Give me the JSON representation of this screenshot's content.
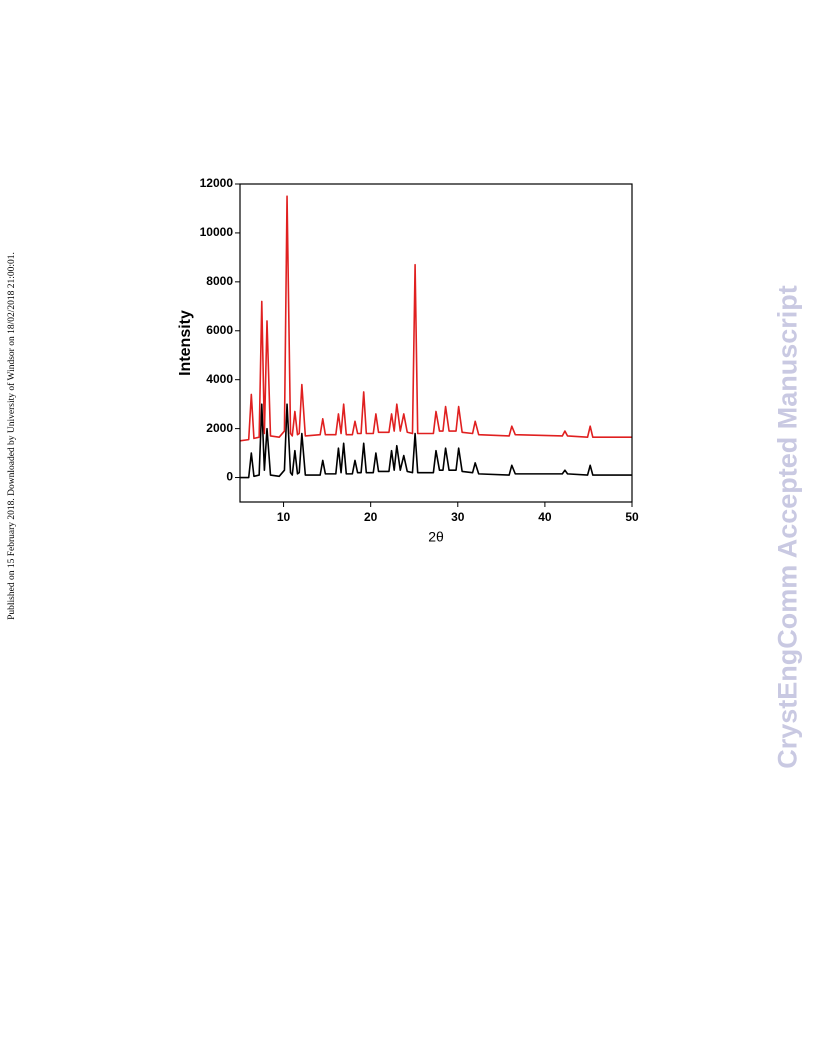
{
  "sidebar_text": "Published on 15 February 2018. Downloaded by University of Windsor on 18/02/2018 21:00:01.",
  "watermark": "CrystEngComm Accepted Manuscript",
  "chart_data": {
    "type": "line",
    "x_label": "2θ",
    "y_label": "Intensity",
    "xlim": [
      5,
      50
    ],
    "ylim": [
      -1000,
      12000
    ],
    "xticks": [
      10,
      20,
      30,
      40,
      50
    ],
    "yticks": [
      0,
      2000,
      4000,
      6000,
      8000,
      10000,
      12000
    ],
    "x": [
      5,
      6.0,
      6.3,
      6.6,
      7.2,
      7.5,
      7.8,
      8.1,
      8.5,
      9.5,
      10.1,
      10.4,
      10.8,
      11.0,
      11.3,
      11.6,
      11.8,
      12.1,
      12.5,
      14.2,
      14.5,
      14.8,
      16.0,
      16.3,
      16.6,
      16.9,
      17.2,
      17.9,
      18.2,
      18.5,
      18.9,
      19.2,
      19.5,
      20.3,
      20.6,
      20.9,
      22.1,
      22.4,
      22.7,
      23.0,
      23.4,
      23.8,
      24.2,
      24.8,
      25.1,
      25.4,
      27.2,
      27.5,
      27.9,
      28.3,
      28.6,
      29.0,
      29.8,
      30.1,
      30.5,
      31.7,
      32.0,
      32.4,
      35.9,
      36.2,
      36.6,
      42.0,
      42.3,
      42.6,
      44.9,
      45.2,
      45.5,
      50
    ],
    "series": [
      {
        "color": "#000000",
        "values": [
          0,
          0,
          1000,
          50,
          100,
          3000,
          300,
          2000,
          100,
          50,
          300,
          3000,
          200,
          100,
          1100,
          150,
          200,
          1800,
          100,
          100,
          700,
          150,
          150,
          1200,
          200,
          1400,
          150,
          150,
          700,
          200,
          200,
          1400,
          200,
          200,
          1000,
          250,
          250,
          1100,
          300,
          1300,
          300,
          900,
          250,
          200,
          1800,
          200,
          200,
          1100,
          300,
          300,
          1200,
          300,
          300,
          1200,
          250,
          200,
          600,
          150,
          100,
          500,
          150,
          150,
          300,
          150,
          100,
          500,
          100,
          100
        ]
      },
      {
        "color": "#e02020",
        "values": [
          1500,
          1550,
          3400,
          1600,
          1650,
          7200,
          1800,
          6400,
          1700,
          1650,
          1900,
          11500,
          1800,
          1700,
          2700,
          1750,
          1800,
          3800,
          1700,
          1750,
          2400,
          1750,
          1750,
          2600,
          1800,
          3000,
          1750,
          1750,
          2300,
          1800,
          1800,
          3500,
          1800,
          1800,
          2600,
          1850,
          1850,
          2600,
          1900,
          3000,
          1900,
          2600,
          1850,
          1800,
          8700,
          1800,
          1800,
          2700,
          1900,
          1900,
          2900,
          1900,
          1900,
          2900,
          1850,
          1800,
          2300,
          1750,
          1700,
          2100,
          1750,
          1700,
          1900,
          1700,
          1650,
          2100,
          1650,
          1650
        ]
      }
    ]
  }
}
